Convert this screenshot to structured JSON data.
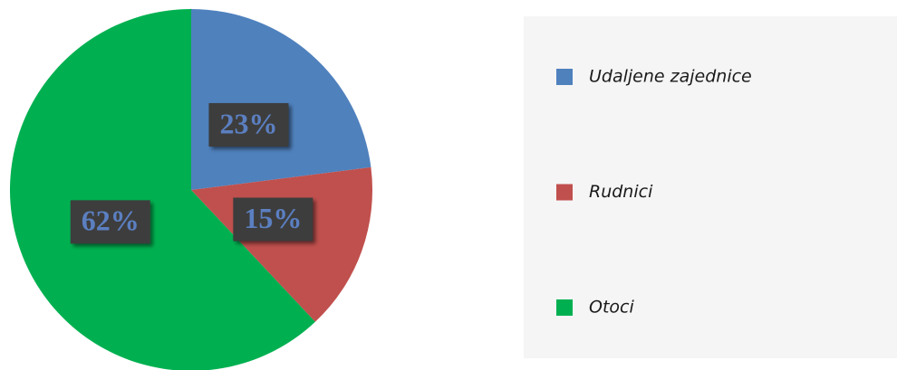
{
  "chart_data": {
    "type": "pie",
    "categories": [
      "Udaljene zajednice",
      "Rudnici",
      "Otoci"
    ],
    "values": [
      23,
      15,
      62
    ],
    "value_labels": [
      "23%",
      "15%",
      "62%"
    ],
    "colors": [
      "#4f81bd",
      "#c0504d",
      "#00b050"
    ],
    "legend": "right"
  }
}
